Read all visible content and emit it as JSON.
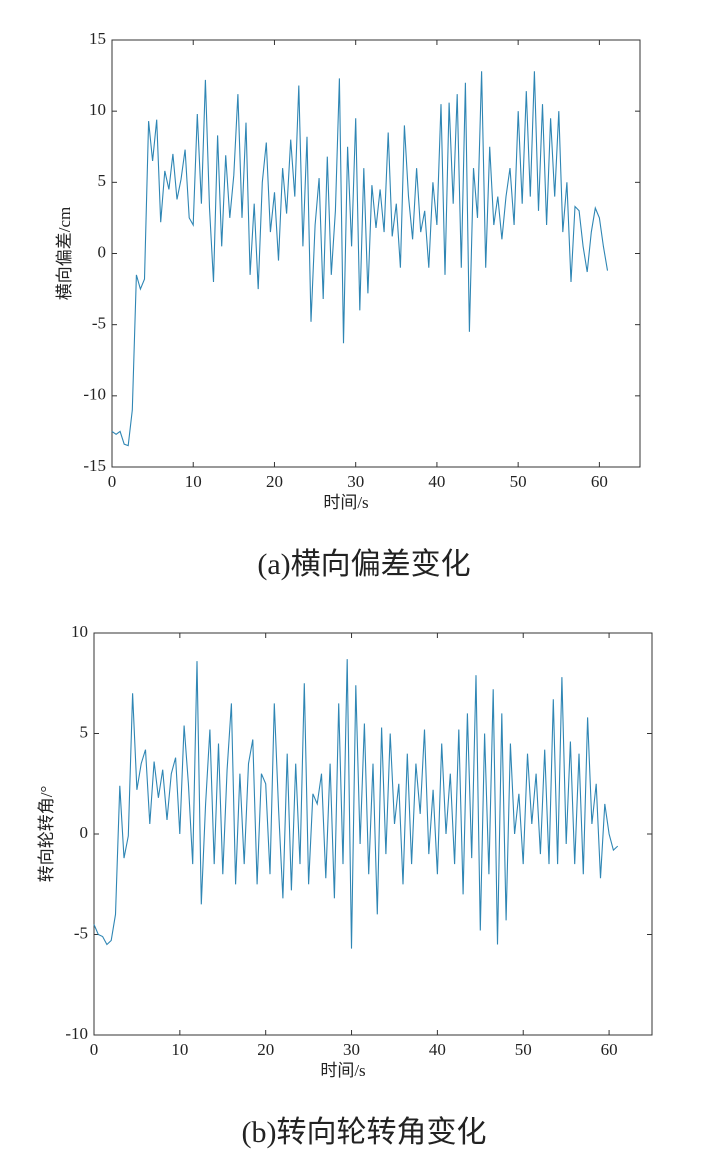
{
  "chart_data": [
    {
      "type": "line",
      "caption": "(a)横向偏差变化",
      "xlabel": "时间/s",
      "ylabel": "横向偏差/cm",
      "xlim": [
        0,
        65
      ],
      "xticks": [
        0,
        10,
        20,
        30,
        40,
        50,
        60
      ],
      "ylim": [
        -15,
        15
      ],
      "yticks": [
        -15,
        -10,
        -5,
        0,
        5,
        10,
        15
      ],
      "x": [
        0,
        0.5,
        1,
        1.5,
        2,
        2.5,
        3,
        3.5,
        4,
        4.5,
        5,
        5.5,
        6,
        6.5,
        7,
        7.5,
        8,
        8.5,
        9,
        9.5,
        10,
        10.5,
        11,
        11.5,
        12,
        12.5,
        13,
        13.5,
        14,
        14.5,
        15,
        15.5,
        16,
        16.5,
        17,
        17.5,
        18,
        18.5,
        19,
        19.5,
        20,
        20.5,
        21,
        21.5,
        22,
        22.5,
        23,
        23.5,
        24,
        24.5,
        25,
        25.5,
        26,
        26.5,
        27,
        27.5,
        28,
        28.5,
        29,
        29.5,
        30,
        30.5,
        31,
        31.5,
        32,
        32.5,
        33,
        33.5,
        34,
        34.5,
        35,
        35.5,
        36,
        36.5,
        37,
        37.5,
        38,
        38.5,
        39,
        39.5,
        40,
        40.5,
        41,
        41.5,
        42,
        42.5,
        43,
        43.5,
        44,
        44.5,
        45,
        45.5,
        46,
        46.5,
        47,
        47.5,
        48,
        48.5,
        49,
        49.5,
        50,
        50.5,
        51,
        51.5,
        52,
        52.5,
        53,
        53.5,
        54,
        54.5,
        55,
        55.5,
        56,
        56.5,
        57,
        57.5,
        58,
        58.5,
        59,
        59.5,
        60,
        60.5,
        61
      ],
      "series": [
        {
          "color": "#2f86b4",
          "values": [
            -12.5,
            -12.7,
            -12.5,
            -13.4,
            -13.5,
            -11,
            -1.5,
            -2.5,
            -1.8,
            9.3,
            6.5,
            9.4,
            2.2,
            5.8,
            4.5,
            7,
            3.8,
            5.2,
            7.3,
            2.5,
            2,
            9.8,
            3.5,
            12.2,
            3.2,
            -2,
            8.3,
            0.5,
            6.9,
            2.5,
            5.5,
            11.2,
            2.5,
            9.2,
            -1.5,
            3.5,
            -2.5,
            5,
            7.8,
            1.5,
            4.3,
            -0.5,
            6,
            2.8,
            8,
            4,
            11.8,
            0.5,
            8.2,
            -4.8,
            2,
            5.3,
            -3.2,
            6.8,
            -1.5,
            3,
            12.3,
            -6.3,
            7.5,
            0.5,
            9.5,
            -4,
            6,
            -2.8,
            4.8,
            1.8,
            4.5,
            1.5,
            8.5,
            1.2,
            3.5,
            -1,
            9,
            4,
            1,
            6,
            1.5,
            3,
            -1,
            5,
            2,
            10.5,
            -1.5,
            10.6,
            3.5,
            11.2,
            -1,
            12,
            -5.5,
            6,
            2.5,
            12.8,
            -1,
            7.5,
            2,
            4,
            1,
            4,
            6,
            2,
            10,
            3.5,
            11.4,
            4,
            12.8,
            3,
            10.5,
            2,
            9.5,
            4,
            10,
            1.5,
            5,
            -2,
            3.3,
            3,
            0.5,
            -1.3,
            1.5,
            3.2,
            2.5,
            0.5,
            -1.2
          ]
        }
      ]
    },
    {
      "type": "line",
      "caption": "(b)转向轮转角变化",
      "xlabel": "时间/s",
      "ylabel": "转向轮转角/°",
      "xlim": [
        0,
        65
      ],
      "xticks": [
        0,
        10,
        20,
        30,
        40,
        50,
        60
      ],
      "ylim": [
        -10,
        10
      ],
      "yticks": [
        -10,
        -5,
        0,
        5,
        10
      ],
      "x": [
        0,
        0.5,
        1,
        1.5,
        2,
        2.5,
        3,
        3.5,
        4,
        4.5,
        5,
        5.5,
        6,
        6.5,
        7,
        7.5,
        8,
        8.5,
        9,
        9.5,
        10,
        10.5,
        11,
        11.5,
        12,
        12.5,
        13,
        13.5,
        14,
        14.5,
        15,
        15.5,
        16,
        16.5,
        17,
        17.5,
        18,
        18.5,
        19,
        19.5,
        20,
        20.5,
        21,
        21.5,
        22,
        22.5,
        23,
        23.5,
        24,
        24.5,
        25,
        25.5,
        26,
        26.5,
        27,
        27.5,
        28,
        28.5,
        29,
        29.5,
        30,
        30.5,
        31,
        31.5,
        32,
        32.5,
        33,
        33.5,
        34,
        34.5,
        35,
        35.5,
        36,
        36.5,
        37,
        37.5,
        38,
        38.5,
        39,
        39.5,
        40,
        40.5,
        41,
        41.5,
        42,
        42.5,
        43,
        43.5,
        44,
        44.5,
        45,
        45.5,
        46,
        46.5,
        47,
        47.5,
        48,
        48.5,
        49,
        49.5,
        50,
        50.5,
        51,
        51.5,
        52,
        52.5,
        53,
        53.5,
        54,
        54.5,
        55,
        55.5,
        56,
        56.5,
        57,
        57.5,
        58,
        58.5,
        59,
        59.5,
        60,
        60.5,
        61
      ],
      "series": [
        {
          "color": "#2f86b4",
          "values": [
            -4.5,
            -5,
            -5.1,
            -5.5,
            -5.3,
            -4,
            2.4,
            -1.2,
            -0.1,
            7,
            2.2,
            3.5,
            4.2,
            0.5,
            3.6,
            1.8,
            3.2,
            0.7,
            3,
            3.8,
            0,
            5.4,
            2.5,
            -1.5,
            8.6,
            -3.5,
            1.5,
            5.2,
            -1.5,
            4.5,
            -2,
            3.2,
            6.5,
            -2.5,
            3,
            -1.5,
            3.5,
            4.7,
            -2.5,
            3,
            2.5,
            -2,
            6.5,
            1.2,
            -3.2,
            4,
            -2.8,
            3.5,
            -1.5,
            7.5,
            -2.5,
            2,
            1.5,
            3,
            -2.2,
            3.5,
            -3.2,
            6.5,
            -1.5,
            8.7,
            -5.7,
            7.4,
            -0.5,
            5.5,
            -2,
            3.5,
            -4,
            5.3,
            -1,
            5,
            0.5,
            2.5,
            -2.5,
            4,
            -1.5,
            3.5,
            1,
            5.2,
            -1,
            2.2,
            -2,
            4.5,
            0,
            3,
            -1.5,
            5.2,
            -3,
            6,
            -1.2,
            7.9,
            -4.8,
            5,
            -2,
            7.2,
            -5.5,
            6,
            -4.3,
            4.5,
            0,
            2,
            -1.5,
            4,
            0.5,
            3,
            -1,
            4.2,
            -1.5,
            6.7,
            -1.5,
            7.8,
            -0.5,
            4.6,
            -1.5,
            4,
            -2,
            5.8,
            0.5,
            2.5,
            -2.2,
            1.5,
            0,
            -0.8,
            -0.6
          ]
        }
      ]
    }
  ]
}
